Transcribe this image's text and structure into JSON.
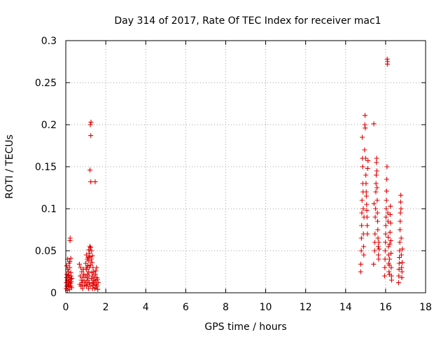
{
  "chart_data": {
    "type": "scatter",
    "title": "Day 314 of 2017, Rate Of TEC Index for receiver mac1",
    "xlabel": "GPS time / hours",
    "ylabel": "ROTI / TECUs",
    "xlim": [
      0,
      18
    ],
    "ylim": [
      0,
      0.3
    ],
    "grid": true,
    "marker": "+",
    "color": "#e00000",
    "x_ticks": [
      0,
      2,
      4,
      6,
      8,
      10,
      12,
      14,
      16,
      18
    ],
    "x_tick_labels": [
      "0",
      "2",
      "4",
      "6",
      "8",
      "10",
      "12",
      "14",
      "16",
      "18"
    ],
    "y_ticks": [
      0,
      0.05,
      0.1,
      0.15,
      0.2,
      0.25,
      0.3
    ],
    "y_tick_labels": [
      "0",
      "0.05",
      "0.1",
      "0.15",
      "0.2",
      "0.25",
      "0.3"
    ],
    "series": [
      {
        "name": "ROTI",
        "points": [
          [
            0.02,
            0.005
          ],
          [
            0.03,
            0.012
          ],
          [
            0.04,
            0.018
          ],
          [
            0.05,
            0.008
          ],
          [
            0.06,
            0.022
          ],
          [
            0.07,
            0.015
          ],
          [
            0.08,
            0.003
          ],
          [
            0.09,
            0.04
          ],
          [
            0.1,
            0.01
          ],
          [
            0.11,
            0.02
          ],
          [
            0.12,
            0.007
          ],
          [
            0.13,
            0.014
          ],
          [
            0.14,
            0.025
          ],
          [
            0.15,
            0.009
          ],
          [
            0.16,
            0.035
          ],
          [
            0.17,
            0.012
          ],
          [
            0.18,
            0.018
          ],
          [
            0.19,
            0.004
          ],
          [
            0.2,
            0.03
          ],
          [
            0.21,
            0.062
          ],
          [
            0.22,
            0.065
          ],
          [
            0.23,
            0.016
          ],
          [
            0.24,
            0.011
          ],
          [
            0.25,
            0.041
          ],
          [
            0.26,
            0.008
          ],
          [
            0.27,
            0.02
          ],
          [
            0.28,
            0.013
          ],
          [
            0.29,
            0.006
          ],
          [
            0.3,
            0.017
          ],
          [
            0.05,
            0.032
          ],
          [
            0.1,
            0.028
          ],
          [
            0.15,
            0.021
          ],
          [
            0.2,
            0.037
          ],
          [
            0.25,
            0.024
          ],
          [
            0.68,
            0.034
          ],
          [
            0.7,
            0.01
          ],
          [
            0.72,
            0.02
          ],
          [
            0.74,
            0.03
          ],
          [
            0.76,
            0.008
          ],
          [
            0.78,
            0.015
          ],
          [
            0.8,
            0.025
          ],
          [
            0.82,
            0.012
          ],
          [
            0.84,
            0.005
          ],
          [
            0.86,
            0.018
          ],
          [
            0.88,
            0.028
          ],
          [
            0.9,
            0.022
          ],
          [
            0.92,
            0.009
          ],
          [
            0.94,
            0.014
          ],
          [
            0.98,
            0.02
          ],
          [
            1.0,
            0.035
          ],
          [
            1.01,
            0.012
          ],
          [
            1.02,
            0.028
          ],
          [
            1.03,
            0.045
          ],
          [
            1.04,
            0.008
          ],
          [
            1.05,
            0.03
          ],
          [
            1.06,
            0.018
          ],
          [
            1.07,
            0.04
          ],
          [
            1.08,
            0.022
          ],
          [
            1.09,
            0.01
          ],
          [
            1.1,
            0.032
          ],
          [
            1.11,
            0.015
          ],
          [
            1.12,
            0.042
          ],
          [
            1.13,
            0.025
          ],
          [
            1.14,
            0.005
          ],
          [
            1.15,
            0.038
          ],
          [
            1.16,
            0.02
          ],
          [
            1.17,
            0.012
          ],
          [
            1.18,
            0.03
          ],
          [
            1.19,
            0.043
          ],
          [
            1.2,
            0.055
          ],
          [
            1.21,
            0.146
          ],
          [
            1.22,
            0.008
          ],
          [
            1.23,
            0.2
          ],
          [
            1.24,
            0.033
          ],
          [
            1.25,
            0.187
          ],
          [
            1.26,
            0.203
          ],
          [
            1.27,
            0.04
          ],
          [
            1.28,
            0.017
          ],
          [
            1.29,
            0.05
          ],
          [
            1.3,
            0.024
          ],
          [
            1.31,
            0.036
          ],
          [
            1.32,
            0.011
          ],
          [
            1.33,
            0.044
          ],
          [
            1.34,
            0.005
          ],
          [
            1.35,
            0.02
          ],
          [
            1.36,
            0.03
          ],
          [
            1.37,
            0.015
          ],
          [
            1.38,
            0.009
          ],
          [
            1.4,
            0.025
          ],
          [
            1.42,
            0.012
          ],
          [
            1.44,
            0.018
          ],
          [
            1.46,
            0.006
          ],
          [
            1.48,
            0.022
          ],
          [
            1.5,
            0.014
          ],
          [
            1.52,
            0.01
          ],
          [
            1.54,
            0.03
          ],
          [
            1.56,
            0.008
          ],
          [
            1.58,
            0.016
          ],
          [
            1.6,
            0.004
          ],
          [
            1.62,
            0.012
          ],
          [
            1.55,
            0.018
          ],
          [
            1.5,
            0.026
          ],
          [
            1.45,
            0.005
          ],
          [
            1.25,
            0.132
          ],
          [
            1.47,
            0.132
          ],
          [
            1.15,
            0.051
          ],
          [
            1.18,
            0.047
          ],
          [
            1.24,
            0.054
          ],
          [
            14.75,
            0.025
          ],
          [
            14.76,
            0.034
          ],
          [
            14.78,
            0.05
          ],
          [
            14.79,
            0.065
          ],
          [
            14.8,
            0.08
          ],
          [
            14.81,
            0.095
          ],
          [
            14.82,
            0.11
          ],
          [
            14.83,
            0.185
          ],
          [
            14.84,
            0.16
          ],
          [
            14.85,
            0.15
          ],
          [
            14.86,
            0.13
          ],
          [
            14.87,
            0.12
          ],
          [
            14.88,
            0.1
          ],
          [
            14.89,
            0.07
          ],
          [
            14.9,
            0.055
          ],
          [
            14.91,
            0.045
          ],
          [
            14.92,
            0.09
          ],
          [
            14.95,
            0.17
          ],
          [
            14.96,
            0.2
          ],
          [
            14.97,
            0.211
          ],
          [
            14.98,
            0.196
          ],
          [
            15.0,
            0.16
          ],
          [
            15.01,
            0.14
          ],
          [
            15.02,
            0.13
          ],
          [
            15.03,
            0.12
          ],
          [
            15.04,
            0.115
          ],
          [
            15.05,
            0.105
          ],
          [
            15.06,
            0.098
          ],
          [
            15.07,
            0.09
          ],
          [
            15.08,
            0.08
          ],
          [
            15.09,
            0.07
          ],
          [
            15.1,
            0.148
          ],
          [
            15.12,
            0.157
          ],
          [
            15.4,
            0.034
          ],
          [
            15.41,
            0.201
          ],
          [
            15.42,
            0.106
          ],
          [
            15.45,
            0.05
          ],
          [
            15.46,
            0.06
          ],
          [
            15.47,
            0.07
          ],
          [
            15.48,
            0.09
          ],
          [
            15.5,
            0.1
          ],
          [
            15.51,
            0.12
          ],
          [
            15.52,
            0.13
          ],
          [
            15.53,
            0.14
          ],
          [
            15.54,
            0.155
          ],
          [
            15.55,
            0.16
          ],
          [
            15.56,
            0.145
          ],
          [
            15.57,
            0.125
          ],
          [
            15.58,
            0.11
          ],
          [
            15.59,
            0.095
          ],
          [
            15.6,
            0.085
          ],
          [
            15.61,
            0.075
          ],
          [
            15.62,
            0.065
          ],
          [
            15.63,
            0.055
          ],
          [
            15.64,
            0.045
          ],
          [
            15.65,
            0.04
          ],
          [
            15.66,
            0.06
          ],
          [
            15.67,
            0.052
          ],
          [
            15.95,
            0.02
          ],
          [
            15.96,
            0.03
          ],
          [
            15.97,
            0.04
          ],
          [
            15.98,
            0.05
          ],
          [
            15.99,
            0.06
          ],
          [
            16.0,
            0.07
          ],
          [
            16.01,
            0.08
          ],
          [
            16.02,
            0.09
          ],
          [
            16.03,
            0.1
          ],
          [
            16.04,
            0.11
          ],
          [
            16.05,
            0.121
          ],
          [
            16.06,
            0.135
          ],
          [
            16.07,
            0.15
          ],
          [
            16.08,
            0.278
          ],
          [
            16.09,
            0.272
          ],
          [
            16.1,
            0.275
          ],
          [
            16.11,
            0.095
          ],
          [
            16.12,
            0.085
          ],
          [
            16.13,
            0.066
          ],
          [
            16.14,
            0.055
          ],
          [
            16.15,
            0.045
          ],
          [
            16.16,
            0.035
          ],
          [
            16.17,
            0.025
          ],
          [
            16.18,
            0.033
          ],
          [
            16.19,
            0.022
          ],
          [
            16.2,
            0.04
          ],
          [
            16.21,
            0.058
          ],
          [
            16.22,
            0.072
          ],
          [
            16.23,
            0.093
          ],
          [
            16.24,
            0.103
          ],
          [
            16.25,
            0.083
          ],
          [
            16.26,
            0.062
          ],
          [
            16.27,
            0.047
          ],
          [
            16.28,
            0.03
          ],
          [
            16.29,
            0.02
          ],
          [
            16.3,
            0.015
          ],
          [
            16.65,
            0.012
          ],
          [
            16.66,
            0.02
          ],
          [
            16.67,
            0.028
          ],
          [
            16.68,
            0.035
          ],
          [
            16.69,
            0.042
          ],
          [
            16.7,
            0.05
          ],
          [
            16.71,
            0.06
          ],
          [
            16.72,
            0.075
          ],
          [
            16.73,
            0.085
          ],
          [
            16.74,
            0.095
          ],
          [
            16.75,
            0.108
          ],
          [
            16.76,
            0.116
          ],
          [
            16.77,
            0.1
          ],
          [
            16.78,
            0.065
          ],
          [
            16.79,
            0.045
          ],
          [
            16.8,
            0.03
          ],
          [
            16.81,
            0.018
          ],
          [
            16.82,
            0.025
          ],
          [
            16.83,
            0.036
          ],
          [
            16.84,
            0.052
          ]
        ]
      }
    ]
  }
}
